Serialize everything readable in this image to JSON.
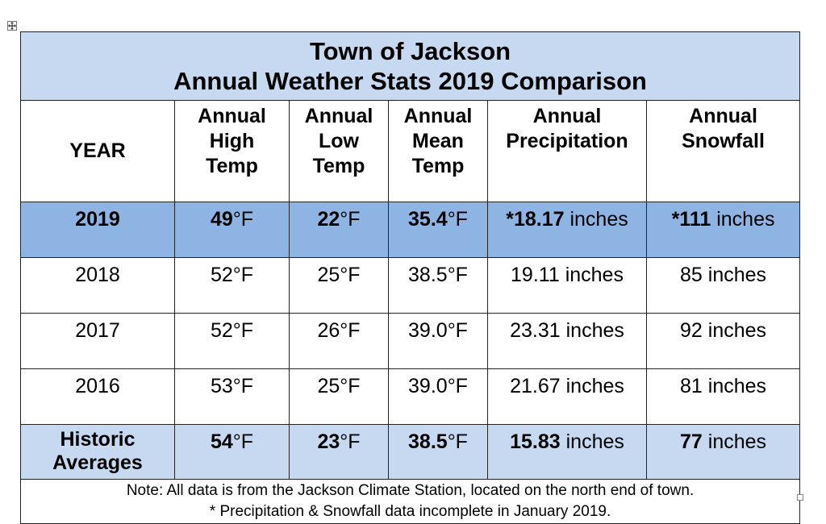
{
  "title": {
    "line1": "Town of Jackson",
    "line2": "Annual Weather Stats 2019 Comparison"
  },
  "headers": {
    "year": "YEAR",
    "high": [
      "Annual",
      "High",
      "Temp"
    ],
    "low": [
      "Annual",
      "Low",
      "Temp"
    ],
    "mean": [
      "Annual",
      "Mean",
      "Temp"
    ],
    "precip": [
      "Annual",
      "Precipitation"
    ],
    "snow": [
      "Annual",
      "Snowfall"
    ]
  },
  "rows": [
    {
      "year": "2019",
      "high": {
        "num": "49",
        "unit": "°F"
      },
      "low": {
        "num": "22",
        "unit": "°F"
      },
      "mean": {
        "num": "35.4",
        "unit": "°F"
      },
      "precip": {
        "num": "*18.17",
        "unit": " inches"
      },
      "snow": {
        "num": "*111",
        "unit": " inches"
      }
    },
    {
      "year": "2018",
      "high": {
        "num": "52",
        "unit": "°F"
      },
      "low": {
        "num": "25",
        "unit": "°F"
      },
      "mean": {
        "num": "38.5",
        "unit": "°F"
      },
      "precip": {
        "num": "19.11",
        "unit": " inches"
      },
      "snow": {
        "num": "85",
        "unit": " inches"
      }
    },
    {
      "year": "2017",
      "high": {
        "num": "52",
        "unit": "°F"
      },
      "low": {
        "num": "26",
        "unit": "°F"
      },
      "mean": {
        "num": "39.0",
        "unit": "°F"
      },
      "precip": {
        "num": "23.31",
        "unit": " inches"
      },
      "snow": {
        "num": "92",
        "unit": " inches"
      }
    },
    {
      "year": "2016",
      "high": {
        "num": "53",
        "unit": "°F"
      },
      "low": {
        "num": "25",
        "unit": "°F"
      },
      "mean": {
        "num": "39.0",
        "unit": "°F"
      },
      "precip": {
        "num": "21.67",
        "unit": " inches"
      },
      "snow": {
        "num": "81",
        "unit": " inches"
      }
    },
    {
      "year_lines": [
        "Historic",
        "Averages"
      ],
      "high": {
        "num": "54",
        "unit": "°F"
      },
      "low": {
        "num": "23",
        "unit": "°F"
      },
      "mean": {
        "num": "38.5",
        "unit": "°F"
      },
      "precip": {
        "num": "15.83",
        "unit": " inches"
      },
      "snow": {
        "num": "77",
        "unit": " inches"
      }
    }
  ],
  "note": {
    "line1": "Note: All data is from the Jackson Climate Station, located on the north end of town.",
    "line2": "* Precipitation & Snowfall data incomplete in January 2019."
  },
  "colors": {
    "title_bg": "#c6d9f1",
    "current_year_bg": "#8eb4e3",
    "averages_bg": "#c6d9f1"
  },
  "icons": {
    "move_handle": "table-move-handle-icon",
    "resize_handle": "table-resize-handle-icon"
  }
}
